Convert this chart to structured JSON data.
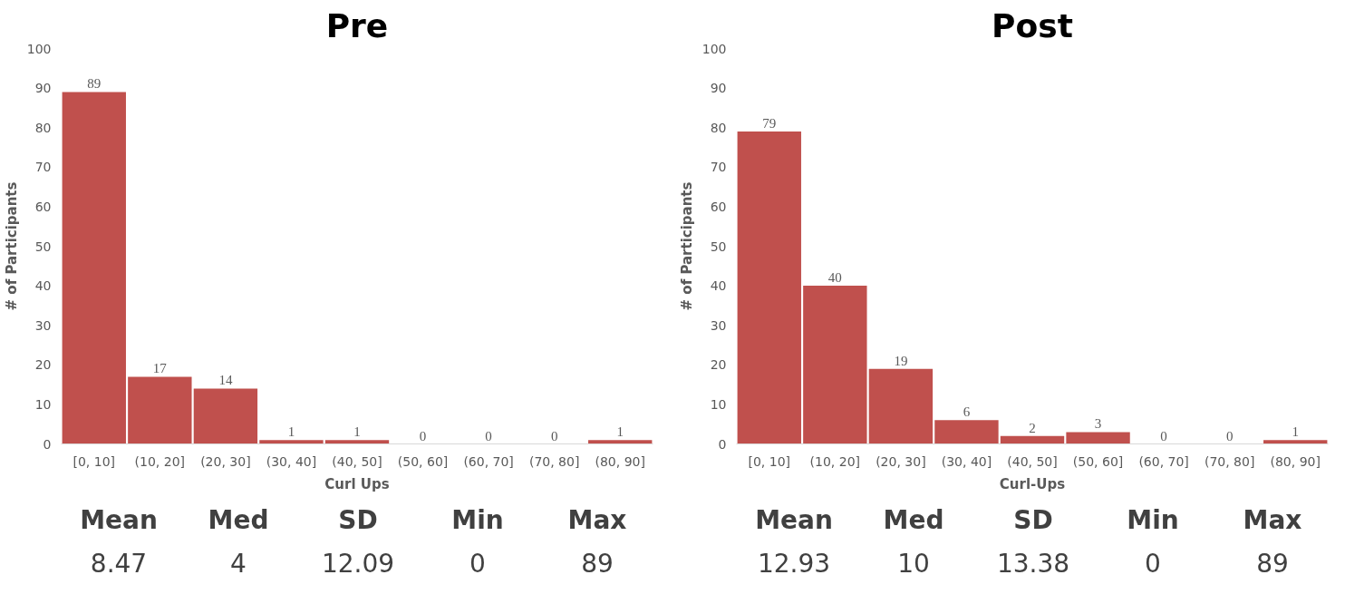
{
  "chart_data": [
    {
      "type": "bar",
      "title": "Pre",
      "xlabel": "Curl Ups",
      "ylabel": "# of Participants",
      "categories": [
        "[0, 10]",
        "(10, 20]",
        "(20, 30]",
        "(30, 40]",
        "(40, 50]",
        "(50, 60]",
        "(60, 70]",
        "(70, 80]",
        "(80, 90]"
      ],
      "values": [
        89,
        17,
        14,
        1,
        1,
        0,
        0,
        0,
        1
      ],
      "color": "#c0504d",
      "ylim": [
        0,
        100
      ],
      "yticks": [
        0,
        10,
        20,
        30,
        40,
        50,
        60,
        70,
        80,
        90,
        100
      ],
      "grid": false,
      "data_labels": true,
      "annotations": [
        "Mean",
        "Med",
        "SD",
        "Min",
        "Max",
        "8.47",
        "4",
        "12.09",
        "0",
        "89"
      ]
    },
    {
      "type": "bar",
      "title": "Post",
      "xlabel": "Curl-Ups",
      "ylabel": "# of Participants",
      "categories": [
        "[0, 10]",
        "(10, 20]",
        "(20, 30]",
        "(30, 40]",
        "(40, 50]",
        "(50, 60]",
        "(60, 70]",
        "(70, 80]",
        "(80, 90]"
      ],
      "values": [
        79,
        40,
        19,
        6,
        2,
        3,
        0,
        0,
        1
      ],
      "color": "#c0504d",
      "ylim": [
        0,
        100
      ],
      "yticks": [
        0,
        10,
        20,
        30,
        40,
        50,
        60,
        70,
        80,
        90,
        100
      ],
      "grid": false,
      "data_labels": true,
      "annotations": [
        "Mean",
        "Med",
        "SD",
        "Min",
        "Max",
        "12.93",
        "10",
        "13.38",
        "0",
        "89"
      ]
    }
  ]
}
